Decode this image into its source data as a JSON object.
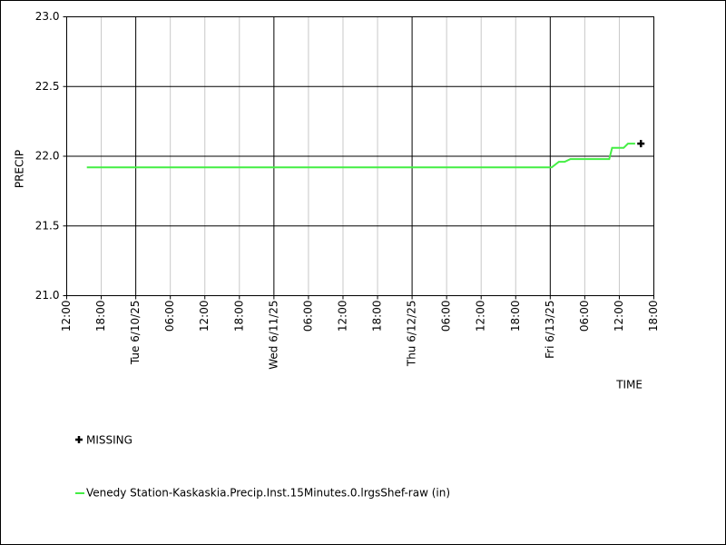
{
  "chart_data": {
    "type": "line",
    "x_label": "TIME",
    "y_label": "PRECIP",
    "x": [
      "2025-06-09T15:30",
      "2025-06-13T00:15",
      "2025-06-13T01:30",
      "2025-06-13T02:30",
      "2025-06-13T03:30",
      "2025-06-13T10:15",
      "2025-06-13T10:45",
      "2025-06-13T12:45",
      "2025-06-13T13:30",
      "2025-06-13T14:45"
    ],
    "series": [
      {
        "name": "Venedy Station-Kaskaskia.Precip.Inst.15Minutes.0.lrgsShef-raw (in)",
        "color": "#44ee44",
        "values": [
          21.92,
          21.92,
          21.96,
          21.96,
          21.98,
          21.98,
          22.06,
          22.06,
          22.09,
          22.09
        ]
      }
    ],
    "missing": {
      "name": "MISSING",
      "color": "#000000",
      "x": [
        "2025-06-13T15:45"
      ],
      "values": [
        22.09
      ]
    },
    "xlim": [
      "2025-06-09T12:00",
      "2025-06-13T18:00"
    ],
    "xticks": [
      {
        "value": "2025-06-09T12:00",
        "label": "12:00"
      },
      {
        "value": "2025-06-09T18:00",
        "label": "18:00"
      },
      {
        "value": "2025-06-10T00:00",
        "label": "Tue 6/10/25"
      },
      {
        "value": "2025-06-10T06:00",
        "label": "06:00"
      },
      {
        "value": "2025-06-10T12:00",
        "label": "12:00"
      },
      {
        "value": "2025-06-10T18:00",
        "label": "18:00"
      },
      {
        "value": "2025-06-11T00:00",
        "label": "Wed 6/11/25"
      },
      {
        "value": "2025-06-11T06:00",
        "label": "06:00"
      },
      {
        "value": "2025-06-11T12:00",
        "label": "12:00"
      },
      {
        "value": "2025-06-11T18:00",
        "label": "18:00"
      },
      {
        "value": "2025-06-12T00:00",
        "label": "Thu 6/12/25"
      },
      {
        "value": "2025-06-12T06:00",
        "label": "06:00"
      },
      {
        "value": "2025-06-12T12:00",
        "label": "12:00"
      },
      {
        "value": "2025-06-12T18:00",
        "label": "18:00"
      },
      {
        "value": "2025-06-13T00:00",
        "label": "Fri 6/13/25"
      },
      {
        "value": "2025-06-13T06:00",
        "label": "06:00"
      },
      {
        "value": "2025-06-13T12:00",
        "label": "12:00"
      },
      {
        "value": "2025-06-13T18:00",
        "label": "18:00"
      }
    ],
    "ylim": [
      21.0,
      23.0
    ],
    "yticks": [
      {
        "value": 21,
        "label": "21.0"
      },
      {
        "value": 21.5,
        "label": "21.5"
      },
      {
        "value": 22,
        "label": "22.0"
      },
      {
        "value": 22.5,
        "label": "22.5"
      },
      {
        "value": 23,
        "label": "23.0"
      }
    ],
    "grid": true
  }
}
